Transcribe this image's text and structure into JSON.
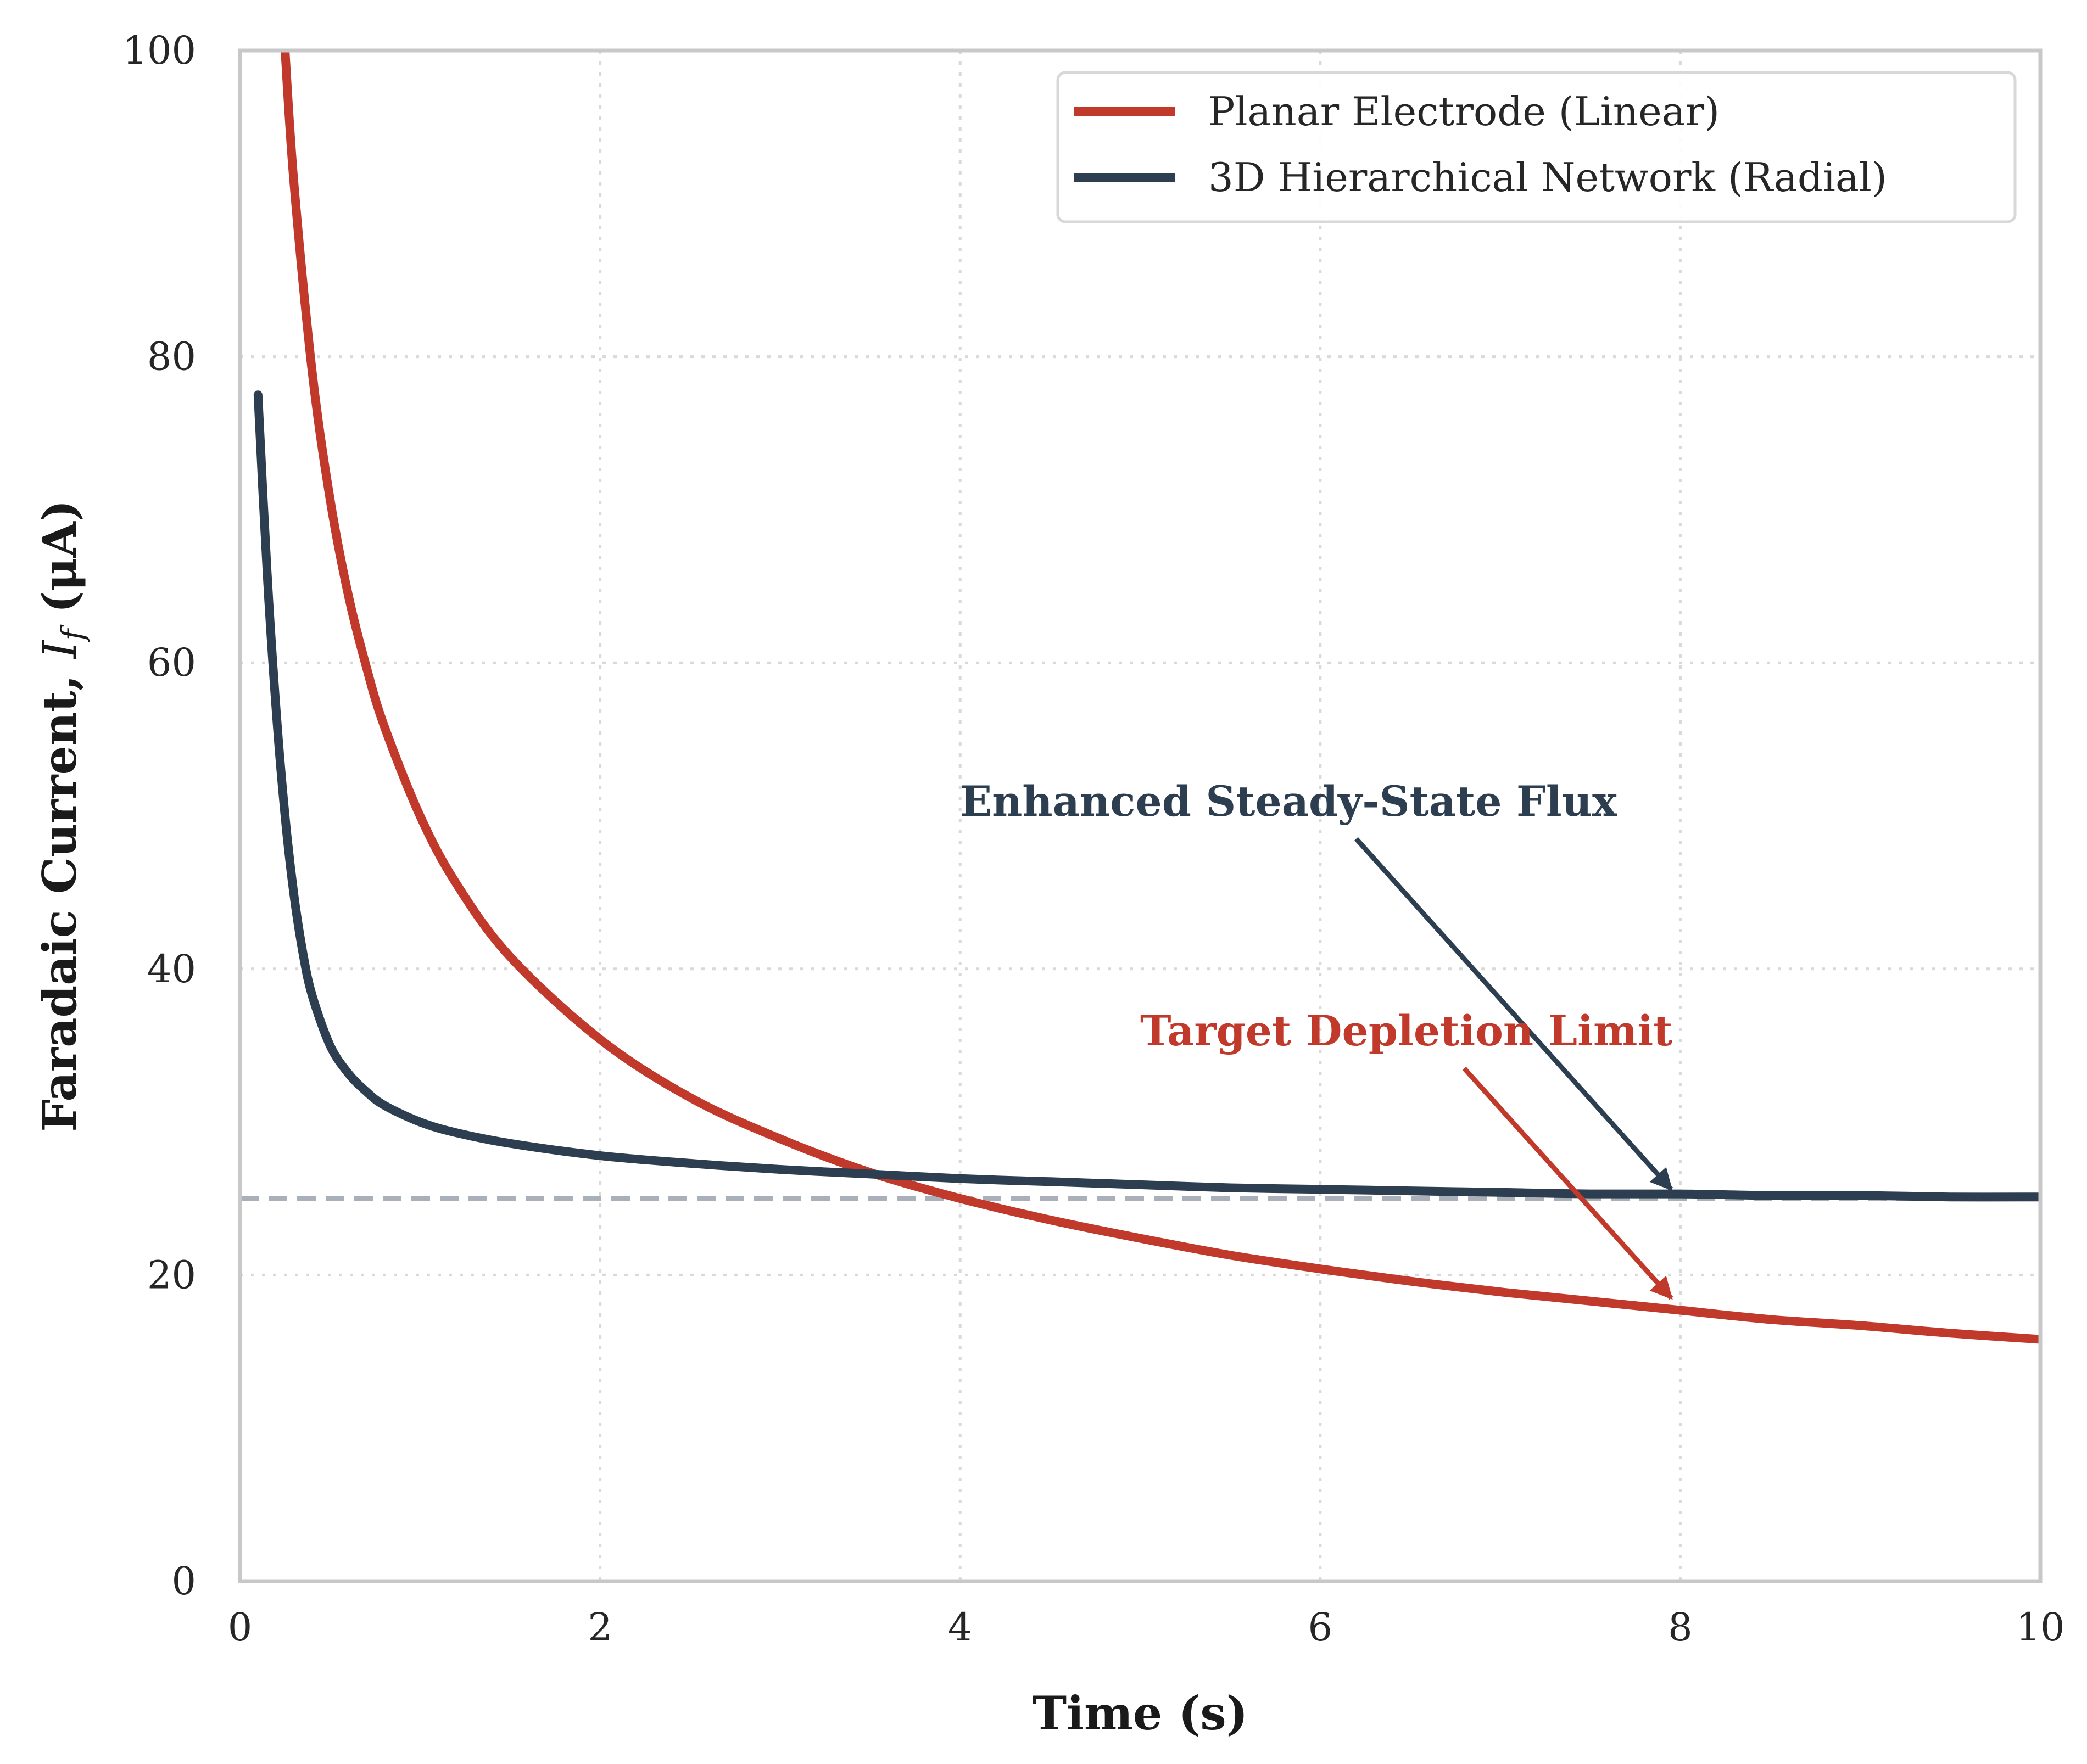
{
  "chart_data": {
    "type": "line",
    "xlabel": "Time (s)",
    "ylabel": "Faradaic Current, I_f (μA)",
    "ylabel_parts": {
      "prefix": "Faradaic Current, ",
      "symbol": "I",
      "subscript": "f",
      "suffix": " (μA)"
    },
    "xlim": [
      0,
      10
    ],
    "ylim": [
      0,
      100
    ],
    "xticks": [
      "0",
      "2",
      "4",
      "6",
      "8",
      "10"
    ],
    "yticks": [
      "0",
      "20",
      "40",
      "60",
      "80",
      "100"
    ],
    "grid": true,
    "legend_position": "top-right",
    "series": [
      {
        "name": "Planar Electrode (Linear)",
        "color": "#c0392b",
        "x": [
          0.25,
          0.3,
          0.4,
          0.5,
          0.6,
          0.7,
          0.8,
          1.0,
          1.2,
          1.5,
          2.0,
          2.5,
          3.0,
          3.5,
          4.0,
          4.5,
          5.0,
          5.5,
          6.0,
          6.5,
          7.0,
          7.5,
          8.0,
          8.5,
          9.0,
          9.5,
          10.0
        ],
        "y": [
          100.0,
          91.3,
          79.1,
          70.7,
          64.5,
          59.8,
          55.9,
          50.0,
          45.6,
          40.8,
          35.4,
          31.6,
          28.9,
          26.7,
          25.0,
          23.6,
          22.4,
          21.3,
          20.4,
          19.6,
          18.9,
          18.3,
          17.7,
          17.1,
          16.7,
          16.2,
          15.8
        ]
      },
      {
        "name": "3D Hierarchical Network (Radial)",
        "color": "#2c3e50",
        "x": [
          0.1,
          0.15,
          0.2,
          0.25,
          0.3,
          0.35,
          0.4,
          0.5,
          0.6,
          0.7,
          0.8,
          1.0,
          1.2,
          1.5,
          2.0,
          2.5,
          3.0,
          3.5,
          4.0,
          4.5,
          5.0,
          5.5,
          6.0,
          6.5,
          7.0,
          7.5,
          8.0,
          8.5,
          9.0,
          9.5,
          10.0
        ],
        "y": [
          77.5,
          66.0,
          57.0,
          50.0,
          44.8,
          41.0,
          38.3,
          35.0,
          33.2,
          32.0,
          31.1,
          30.0,
          29.3,
          28.6,
          27.8,
          27.3,
          26.9,
          26.6,
          26.3,
          26.1,
          25.9,
          25.7,
          25.6,
          25.5,
          25.4,
          25.3,
          25.3,
          25.2,
          25.2,
          25.1,
          25.1
        ]
      }
    ],
    "reference_line": {
      "y": 25,
      "color": "#aab0ba"
    },
    "annotations": [
      {
        "text": "Enhanced Steady-State Flux",
        "color": "#2c3e50",
        "text_x": 4.0,
        "text_y": 50,
        "arrow_from": [
          6.2,
          48.5
        ],
        "arrow_to": [
          7.95,
          25.6
        ]
      },
      {
        "text": "Target Depletion Limit",
        "color": "#c0392b",
        "text_x": 5.0,
        "text_y": 35,
        "arrow_from": [
          6.8,
          33.5
        ],
        "arrow_to": [
          7.95,
          18.5
        ]
      }
    ]
  }
}
